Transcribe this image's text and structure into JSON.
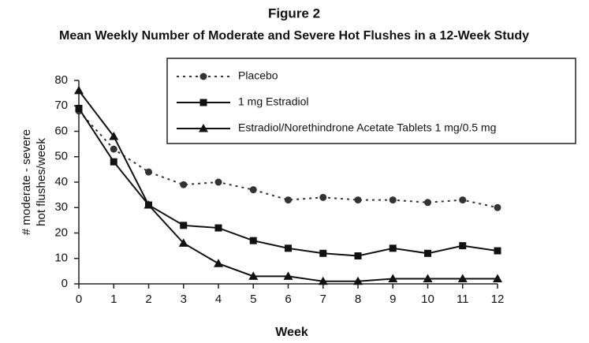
{
  "chart_data": {
    "type": "line",
    "title": "Figure 2",
    "subtitle": "Mean Weekly Number of Moderate and Severe Hot Flushes in a 12-Week Study",
    "x_label": "Week",
    "y_label": [
      "# moderate - severe",
      "hot flushes/week"
    ],
    "x": [
      0,
      1,
      2,
      3,
      4,
      5,
      6,
      7,
      8,
      9,
      10,
      11,
      12
    ],
    "xlim": [
      0,
      12
    ],
    "xticks": [
      0,
      1,
      2,
      3,
      4,
      5,
      6,
      7,
      8,
      9,
      10,
      11,
      12
    ],
    "ylim": [
      0,
      80
    ],
    "yticks": [
      0,
      10,
      20,
      30,
      40,
      50,
      60,
      70,
      80
    ],
    "grid": false,
    "series": [
      {
        "name": "Placebo",
        "color": "#333333",
        "line_style": "dotted",
        "marker": "circle",
        "values": [
          68,
          53,
          44,
          39,
          40,
          37,
          33,
          34,
          33,
          33,
          32,
          33,
          30
        ]
      },
      {
        "name": "1 mg Estradiol",
        "color": "#111111",
        "line_style": "solid",
        "marker": "square",
        "values": [
          69,
          48,
          31,
          23,
          22,
          17,
          14,
          12,
          11,
          14,
          12,
          15,
          13
        ]
      },
      {
        "name": "Estradiol/Norethindrone Acetate Tablets 1 mg/0.5 mg",
        "color": "#111111",
        "line_style": "solid",
        "marker": "triangle",
        "values": [
          76,
          58,
          31,
          16,
          8,
          3,
          3,
          1,
          1,
          2,
          2,
          2,
          2
        ]
      }
    ]
  }
}
